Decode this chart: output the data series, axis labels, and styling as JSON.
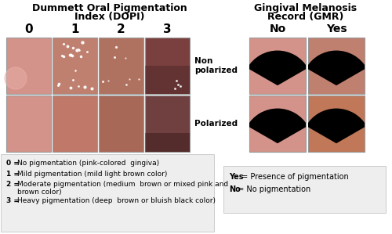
{
  "title_left_line1": "Dummett Oral Pigmentation",
  "title_left_line2": "Index (DOPI)",
  "title_right_line1": "Gingival Melanosis",
  "title_right_line2": "Record (GMR)",
  "dopi_labels": [
    "0",
    "1",
    "2",
    "3"
  ],
  "gmr_col_labels": [
    "No",
    "Yes"
  ],
  "dopi_row0_colors": [
    "#d4938a",
    "#c08070",
    "#b07260",
    "#7a4040"
  ],
  "dopi_row1_colors": [
    "#d4938a",
    "#c07868",
    "#a86858",
    "#704040"
  ],
  "gmr_cells": [
    {
      "top": "#d4938a",
      "row": 0,
      "col": 0
    },
    {
      "top": "#c08070",
      "row": 0,
      "col": 1
    },
    {
      "top": "#d4938a",
      "row": 1,
      "col": 0
    },
    {
      "top": "#c07858",
      "row": 1,
      "col": 1
    }
  ],
  "legend_left_items": [
    {
      "bold": "0 = ",
      "rest": "No pigmentation (pink-colored  gingiva)"
    },
    {
      "bold": "1 = ",
      "rest": "Mild pigmentation (mild light brown color)"
    },
    {
      "bold": "2 = ",
      "rest": "Moderate pigmentation (medium  brown or mixed pink and\nbrown color)"
    },
    {
      "bold": "3 = ",
      "rest": "Heavy pigmentation (deep  brown or bluish black color)"
    }
  ],
  "legend_right_items": [
    {
      "bold": "Yes",
      "rest": " = Presence of pigmentation"
    },
    {
      "bold": "No",
      "rest": " = No pigmentation"
    }
  ],
  "bg_color": "#ffffff",
  "legend_bg": "#eeeeee",
  "text_color": "#000000",
  "border_color": "#cccccc",
  "white": "#ffffff",
  "black": "#000000",
  "figw": 5.0,
  "figh": 2.99,
  "dpi": 100
}
